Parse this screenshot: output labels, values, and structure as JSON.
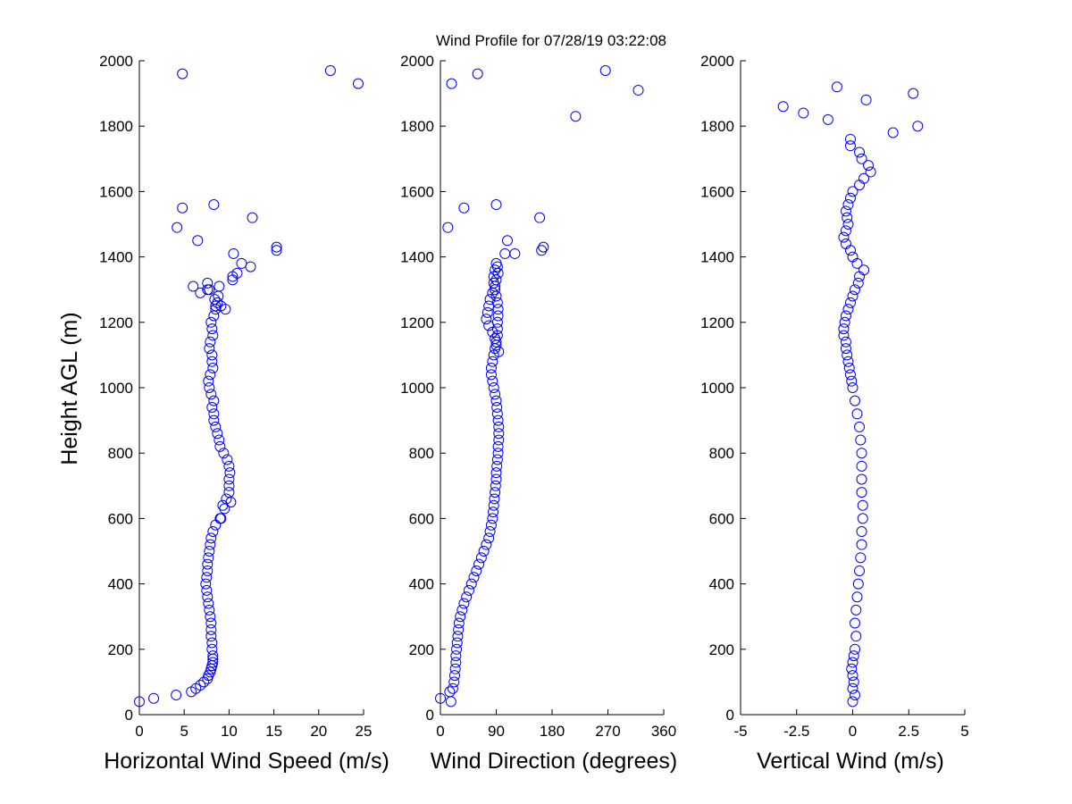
{
  "figure": {
    "title": "Wind Profile for  07/28/19 03:22:08"
  },
  "colors": {
    "marker": "#0000ff",
    "axes": "#000000",
    "background": "#ffffff"
  },
  "chart_data": [
    {
      "type": "scatter",
      "xlabel": "Horizontal Wind Speed (m/s)",
      "ylabel": "Height AGL (m)",
      "xlim": [
        0,
        25
      ],
      "ylim": [
        0,
        2000
      ],
      "xticks": [
        "0",
        "5",
        "10",
        "15",
        "20",
        "25"
      ],
      "yticks": [
        "0",
        "200",
        "400",
        "600",
        "800",
        "1000",
        "1200",
        "1400",
        "1600",
        "1800",
        "2000"
      ],
      "x": [
        0.0,
        1.6,
        4.1,
        5.8,
        6.3,
        6.8,
        7.2,
        7.6,
        7.7,
        7.9,
        8.0,
        8.1,
        8.2,
        8.2,
        8.2,
        8.1,
        8.1,
        8.0,
        8.0,
        8.0,
        7.9,
        7.8,
        7.7,
        7.4,
        7.6,
        7.5,
        7.5,
        7.6,
        7.6,
        7.7,
        7.8,
        7.9,
        8.0,
        8.2,
        8.5,
        9.0,
        9.5,
        9.3,
        9.1,
        9.7,
        10.2,
        10.0,
        10.0,
        10.0,
        10.1,
        10.0,
        9.8,
        9.4,
        9.0,
        8.9,
        8.7,
        8.5,
        8.3,
        8.3,
        8.1,
        8.3,
        8.0,
        7.8,
        7.7,
        7.9,
        8.2,
        8.1,
        8.1,
        7.8,
        7.9,
        8.2,
        8.1,
        8.0,
        8.3,
        8.5,
        8.5,
        8.7,
        8.8,
        8.4,
        9.6,
        9.1,
        7.6,
        8.9,
        7.6,
        6.8,
        6.0,
        7.8,
        10.4,
        10.9,
        10.4,
        12.4,
        11.4,
        15.3,
        10.5,
        15.3,
        6.5,
        4.2,
        12.6,
        4.8,
        8.3,
        24.4,
        4.8,
        21.3
      ],
      "y": [
        40,
        50,
        60,
        70,
        80,
        90,
        100,
        110,
        120,
        130,
        140,
        150,
        160,
        170,
        180,
        200,
        220,
        240,
        260,
        280,
        300,
        320,
        340,
        400,
        360,
        380,
        420,
        440,
        460,
        480,
        500,
        520,
        540,
        560,
        580,
        600,
        630,
        640,
        600,
        660,
        650,
        680,
        700,
        720,
        740,
        760,
        780,
        800,
        820,
        840,
        860,
        880,
        900,
        920,
        940,
        960,
        980,
        1000,
        1020,
        1040,
        1060,
        1080,
        1100,
        1120,
        1140,
        1160,
        1180,
        1200,
        1220,
        1240,
        1250,
        1260,
        1280,
        1270,
        1240,
        1250,
        1300,
        1310,
        1320,
        1290,
        1310,
        1300,
        1330,
        1350,
        1340,
        1370,
        1380,
        1420,
        1410,
        1430,
        1450,
        1490,
        1520,
        1550,
        1560,
        1930,
        1960,
        1970
      ]
    },
    {
      "type": "scatter",
      "xlabel": "Wind Direction (degrees)",
      "ylabel": "",
      "xlim": [
        0,
        360
      ],
      "ylim": [
        0,
        2000
      ],
      "xticks": [
        "0",
        "90",
        "180",
        "270",
        "360"
      ],
      "yticks": [
        "0",
        "200",
        "400",
        "600",
        "800",
        "1000",
        "1200",
        "1400",
        "1600",
        "1800",
        "2000"
      ],
      "x": [
        0,
        17,
        15,
        20,
        22,
        23,
        24,
        25,
        25,
        26,
        27,
        28,
        29,
        30,
        32,
        35,
        38,
        42,
        46,
        50,
        54,
        58,
        62,
        66,
        70,
        74,
        78,
        80,
        82,
        84,
        85,
        86,
        87,
        88,
        89,
        90,
        90,
        91,
        92,
        93,
        93,
        94,
        94,
        94,
        93,
        92,
        91,
        90,
        88,
        86,
        84,
        82,
        82,
        84,
        86,
        88,
        90,
        92,
        92,
        92,
        93,
        93,
        92,
        90,
        88,
        86,
        86,
        88,
        90,
        92,
        93,
        90,
        88,
        84,
        80,
        78,
        76,
        74,
        78,
        84,
        88,
        90,
        94,
        108,
        104,
        120,
        160,
        163,
        166,
        218,
        319,
        266,
        60,
        18,
        38,
        90,
        12
      ],
      "y": [
        50,
        40,
        70,
        80,
        100,
        120,
        140,
        160,
        180,
        200,
        220,
        240,
        260,
        280,
        300,
        320,
        340,
        360,
        380,
        400,
        420,
        440,
        460,
        480,
        500,
        520,
        540,
        560,
        580,
        600,
        620,
        640,
        660,
        680,
        700,
        720,
        740,
        760,
        780,
        800,
        820,
        840,
        860,
        880,
        900,
        920,
        940,
        960,
        980,
        1000,
        1020,
        1040,
        1060,
        1080,
        1100,
        1120,
        1140,
        1160,
        1180,
        1200,
        1220,
        1240,
        1260,
        1280,
        1300,
        1320,
        1340,
        1360,
        1380,
        1370,
        1350,
        1330,
        1310,
        1290,
        1270,
        1250,
        1230,
        1210,
        1190,
        1170,
        1150,
        1130,
        1110,
        1450,
        1410,
        1410,
        1520,
        1420,
        1430,
        1830,
        1910,
        1970,
        1960,
        1930,
        1550,
        1560,
        1490
      ]
    },
    {
      "type": "scatter",
      "xlabel": "Vertical Wind (m/s)",
      "ylabel": "",
      "xlim": [
        -5,
        5
      ],
      "ylim": [
        0,
        2000
      ],
      "xticks": [
        "-5",
        "-2.5",
        "0",
        "2.5",
        "5"
      ],
      "yticks": [
        "0",
        "200",
        "400",
        "600",
        "800",
        "1000",
        "1200",
        "1400",
        "1600",
        "1800",
        "2000"
      ],
      "x": [
        0.0,
        0.1,
        0.0,
        0.05,
        0.0,
        -0.05,
        0.0,
        0.05,
        0.1,
        0.15,
        0.1,
        0.15,
        0.2,
        0.25,
        0.3,
        0.35,
        0.4,
        0.4,
        0.45,
        0.45,
        0.4,
        0.4,
        0.4,
        0.4,
        0.35,
        0.3,
        0.2,
        0.1,
        0.0,
        -0.05,
        -0.1,
        -0.15,
        -0.2,
        -0.25,
        -0.3,
        -0.3,
        -0.4,
        -0.4,
        -0.35,
        -0.3,
        -0.2,
        -0.1,
        0.0,
        0.1,
        0.25,
        0.3,
        0.5,
        0.2,
        0.0,
        -0.1,
        -0.3,
        -0.4,
        -0.3,
        -0.2,
        -0.25,
        -0.3,
        -0.2,
        -0.1,
        0.0,
        0.3,
        0.5,
        0.8,
        0.7,
        0.4,
        0.3,
        -0.1,
        -0.1,
        1.8,
        2.9,
        -1.1,
        -2.2,
        -3.1,
        0.6,
        2.7,
        -0.7
      ],
      "y": [
        40,
        60,
        80,
        100,
        120,
        140,
        160,
        180,
        200,
        240,
        280,
        320,
        360,
        400,
        440,
        480,
        520,
        560,
        600,
        640,
        680,
        720,
        760,
        800,
        840,
        880,
        920,
        960,
        1000,
        1020,
        1040,
        1060,
        1080,
        1100,
        1120,
        1140,
        1160,
        1180,
        1200,
        1220,
        1240,
        1260,
        1280,
        1300,
        1320,
        1340,
        1360,
        1380,
        1400,
        1420,
        1440,
        1460,
        1480,
        1500,
        1520,
        1540,
        1560,
        1580,
        1600,
        1620,
        1640,
        1660,
        1680,
        1700,
        1720,
        1740,
        1760,
        1780,
        1800,
        1820,
        1840,
        1860,
        1880,
        1900,
        1920
      ]
    }
  ]
}
